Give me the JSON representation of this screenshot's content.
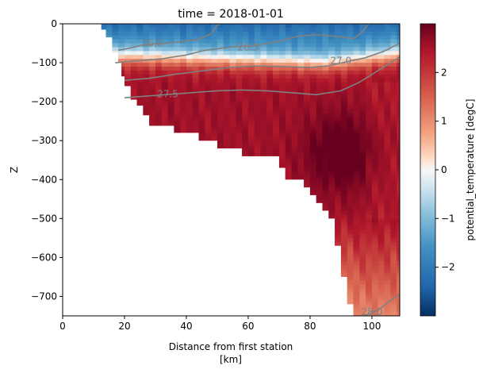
{
  "chart_data": {
    "type": "heatmap",
    "title": "time = 2018-01-01",
    "xlabel": "Distance from first station",
    "xlabel_units": "[km]",
    "ylabel": "Z",
    "xlim": [
      0,
      109
    ],
    "ylim": [
      -750,
      0
    ],
    "x_ticks": [
      0,
      20,
      40,
      60,
      80,
      100
    ],
    "x_tick_labels": [
      "0",
      "20",
      "40",
      "60",
      "80",
      "100"
    ],
    "y_ticks": [
      0,
      -100,
      -200,
      -300,
      -400,
      -500,
      -600,
      -700
    ],
    "y_tick_labels": [
      "0",
      "−100",
      "−200",
      "−300",
      "−400",
      "−500",
      "−600",
      "−700"
    ],
    "colorbar": {
      "label": "potential_temperature [degC]",
      "range": [
        -3,
        3
      ],
      "ticks": [
        2,
        1,
        0,
        -1,
        -2
      ],
      "tick_labels": [
        "2",
        "1",
        "0",
        "−1",
        "−2"
      ],
      "colormap": "RdBu_r"
    },
    "bottom_depth": [
      [
        12.5,
        -15
      ],
      [
        14,
        -35
      ],
      [
        16,
        -75
      ],
      [
        18,
        -100
      ],
      [
        19,
        -135
      ],
      [
        20,
        -160
      ],
      [
        22,
        -195
      ],
      [
        24,
        -210
      ],
      [
        26,
        -235
      ],
      [
        28,
        -262
      ],
      [
        34,
        -262
      ],
      [
        36,
        -280
      ],
      [
        44,
        -300
      ],
      [
        50,
        -320
      ],
      [
        58,
        -340
      ],
      [
        68,
        -340
      ],
      [
        70,
        -370
      ],
      [
        72,
        -400
      ],
      [
        78,
        -420
      ],
      [
        80,
        -440
      ],
      [
        82,
        -460
      ],
      [
        84,
        -480
      ],
      [
        86,
        -500
      ],
      [
        88,
        -570
      ],
      [
        90,
        -650
      ],
      [
        92,
        -720
      ],
      [
        94,
        -750
      ]
    ],
    "contours": [
      {
        "label": "26.0",
        "label_at": [
          29,
          -50
        ],
        "points": [
          [
            18,
            -68
          ],
          [
            22,
            -62
          ],
          [
            26,
            -54
          ],
          [
            32,
            -51
          ],
          [
            38,
            -46
          ],
          [
            44,
            -40
          ],
          [
            48,
            -25
          ],
          [
            50,
            -5
          ],
          [
            51,
            0
          ]
        ]
      },
      {
        "label": "26.5",
        "label_at": [
          60,
          -60
        ],
        "points": [
          [
            17,
            -100
          ],
          [
            24,
            -95
          ],
          [
            32,
            -90
          ],
          [
            40,
            -80
          ],
          [
            46,
            -68
          ],
          [
            54,
            -60
          ],
          [
            62,
            -56
          ],
          [
            70,
            -45
          ],
          [
            76,
            -32
          ],
          [
            82,
            -28
          ],
          [
            88,
            -32
          ],
          [
            94,
            -38
          ],
          [
            97,
            -20
          ],
          [
            99,
            0
          ]
        ]
      },
      {
        "label": "27.0",
        "label_at": [
          90,
          -95
        ],
        "points": [
          [
            20,
            -145
          ],
          [
            28,
            -140
          ],
          [
            36,
            -130
          ],
          [
            44,
            -122
          ],
          [
            54,
            -112
          ],
          [
            62,
            -108
          ],
          [
            72,
            -110
          ],
          [
            80,
            -112
          ],
          [
            86,
            -108
          ],
          [
            92,
            -97
          ],
          [
            98,
            -87
          ],
          [
            104,
            -70
          ],
          [
            109,
            -50
          ]
        ]
      },
      {
        "label": "27.5",
        "label_at": [
          34,
          -180
        ],
        "points": [
          [
            20,
            -190
          ],
          [
            28,
            -185
          ],
          [
            40,
            -178
          ],
          [
            50,
            -172
          ],
          [
            58,
            -170
          ],
          [
            66,
            -172
          ],
          [
            74,
            -177
          ],
          [
            82,
            -182
          ],
          [
            90,
            -172
          ],
          [
            96,
            -150
          ],
          [
            102,
            -120
          ],
          [
            106,
            -100
          ],
          [
            109,
            -85
          ]
        ]
      },
      {
        "label": "28.0",
        "label_at": [
          100,
          -740
        ],
        "points": [
          [
            90,
            -770
          ],
          [
            96,
            -755
          ],
          [
            102,
            -735
          ],
          [
            107,
            -705
          ],
          [
            109,
            -695
          ]
        ]
      }
    ],
    "temperature_field_summary": {
      "surface_cold_layer": "values near -1 to -2 degC in upper ~60 m",
      "thermocline": "transition through ~0 near -100 to -130 m",
      "warm_core": "max ~2.8 degC centered near x=90, z=-330",
      "deep_offshore": "values ~0.7 to 1.2 degC below -600 m"
    }
  }
}
